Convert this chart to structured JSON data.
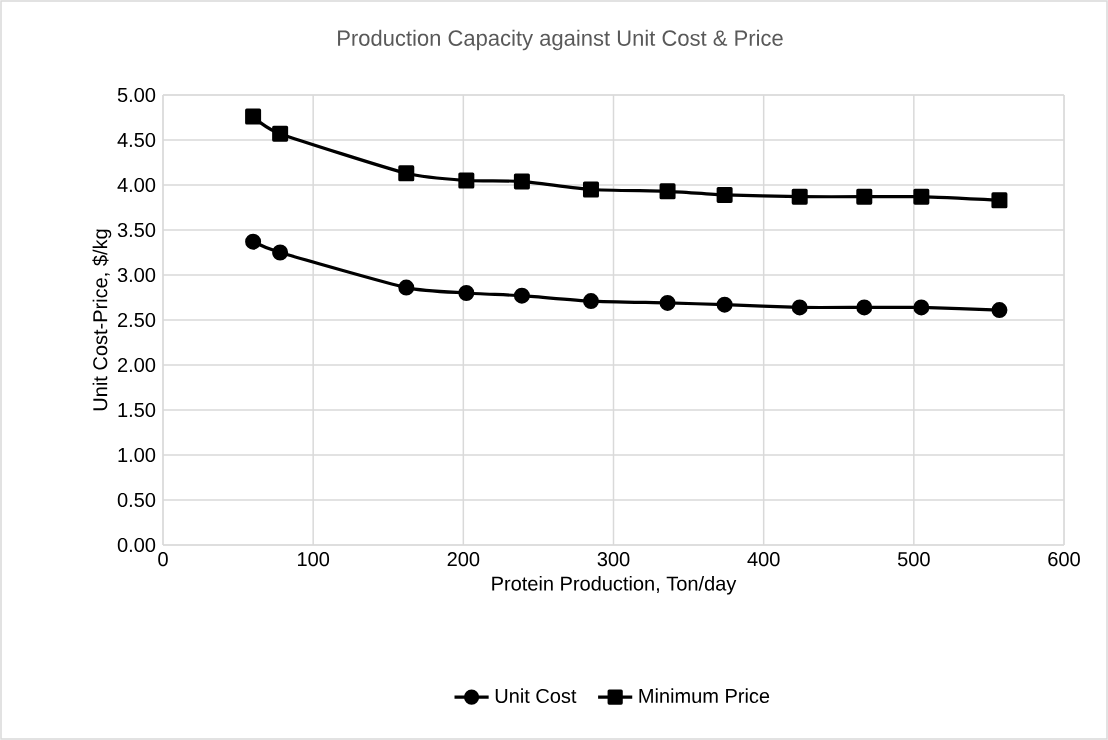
{
  "chart_data": {
    "type": "line",
    "title": "Production  Capacity against Unit Cost & Price",
    "xlabel": "Protein Production, Ton/day",
    "ylabel": "Unit Cost-Price, $/kg",
    "x": [
      60,
      78,
      162,
      202,
      239,
      285,
      336,
      374,
      424,
      467,
      505,
      557
    ],
    "series": [
      {
        "name": "Unit Cost",
        "color": "#000000",
        "marker": "circle",
        "values": [
          3.37,
          3.25,
          2.86,
          2.8,
          2.77,
          2.71,
          2.69,
          2.67,
          2.64,
          2.64,
          2.64,
          2.61
        ]
      },
      {
        "name": "Minimum Price",
        "color": "#000000",
        "marker": "square",
        "values": [
          4.76,
          4.57,
          4.13,
          4.05,
          4.04,
          3.95,
          3.93,
          3.89,
          3.87,
          3.87,
          3.87,
          3.83
        ]
      }
    ],
    "xlim": [
      0,
      600
    ],
    "ylim": [
      0,
      5
    ],
    "xticks": [
      0,
      100,
      200,
      300,
      400,
      500,
      600
    ],
    "yticks": [
      {
        "value": 0,
        "label": "0.00"
      },
      {
        "value": 0.5,
        "label": "0.50"
      },
      {
        "value": 1,
        "label": "1.00"
      },
      {
        "value": 1.5,
        "label": "1.50"
      },
      {
        "value": 2,
        "label": "2.00"
      },
      {
        "value": 2.5,
        "label": "2.50"
      },
      {
        "value": 3,
        "label": "3.00"
      },
      {
        "value": 3.5,
        "label": "3.50"
      },
      {
        "value": 4,
        "label": "4.00"
      },
      {
        "value": 4.5,
        "label": "4.50"
      },
      {
        "value": 5,
        "label": "5.00"
      }
    ],
    "grid": true,
    "legend": "bottom",
    "line_style": "solid"
  }
}
